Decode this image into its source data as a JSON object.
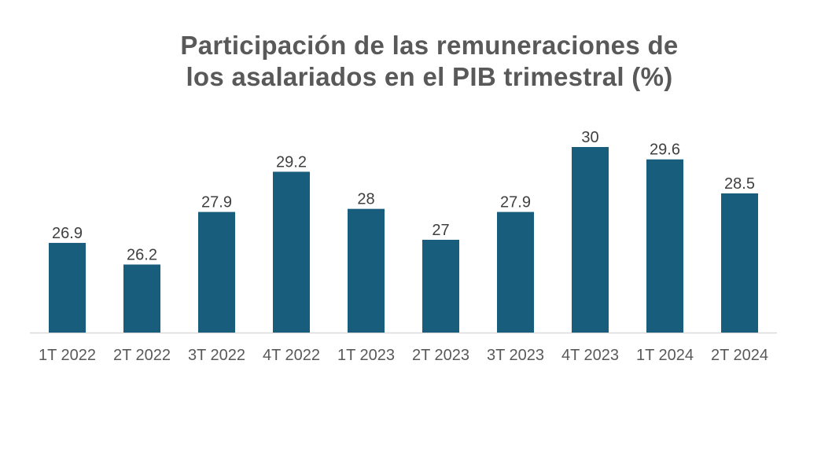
{
  "chart_data": {
    "type": "bar",
    "title_line1": "Participación de las remuneraciones de",
    "title_line2": "los asalariados en el PIB trimestral (%)",
    "categories": [
      "1T 2022",
      "2T 2022",
      "3T 2022",
      "4T 2022",
      "1T 2023",
      "2T 2023",
      "3T 2023",
      "4T 2023",
      "1T 2024",
      "2T 2024"
    ],
    "values": [
      26.9,
      26.2,
      27.9,
      29.2,
      28,
      27,
      27.9,
      30,
      29.6,
      28.5
    ],
    "xlabel": "",
    "ylabel": "",
    "ylim": [
      24,
      30
    ],
    "grid": false,
    "legend": "none",
    "colors": {
      "bar": "#185d7c",
      "axis": "#d9d9d9"
    }
  }
}
